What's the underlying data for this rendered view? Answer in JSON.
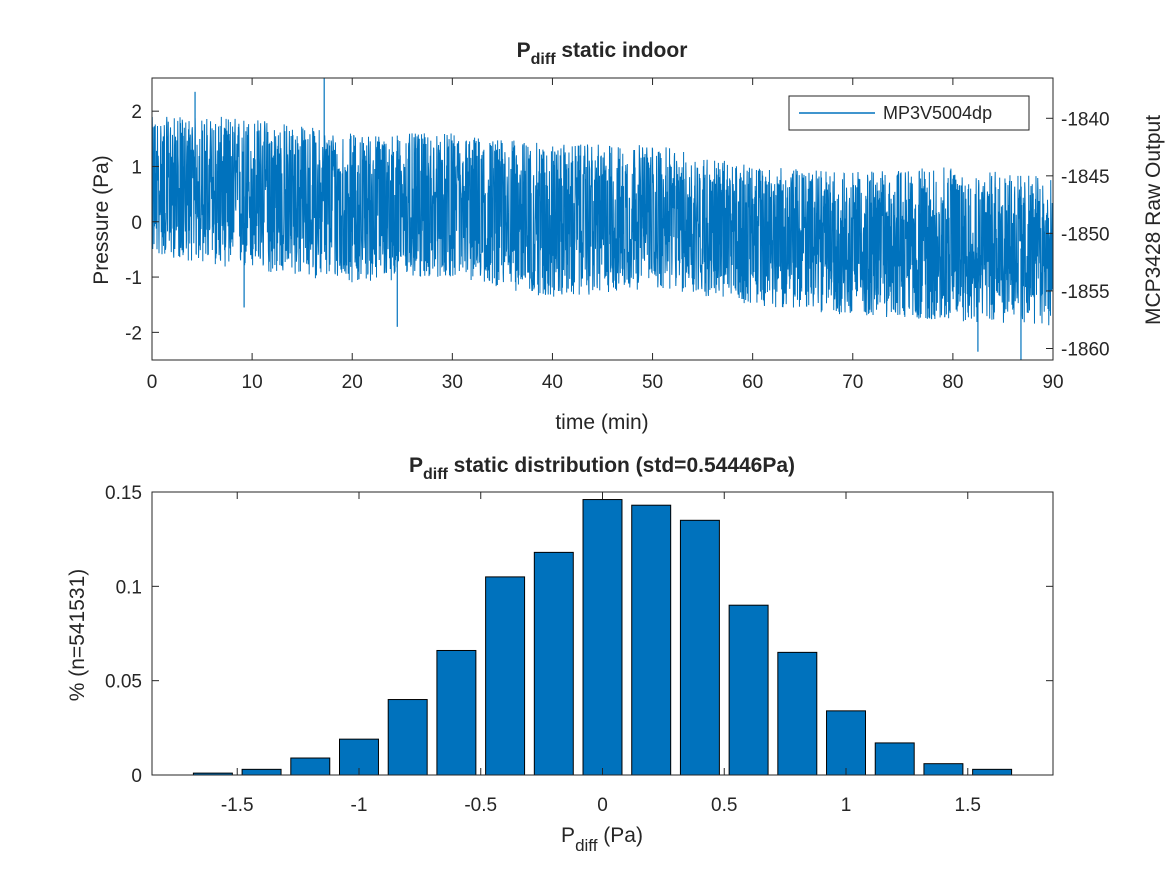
{
  "figure": {
    "background": "#ffffff",
    "accent_color": "#0072BD",
    "axis_color": "#262626"
  },
  "chart_data": [
    {
      "type": "line",
      "title_main": "P",
      "title_sub": "diff",
      "title_rest": " static indoor",
      "xlabel": "time (min)",
      "ylabel": "Pressure (Pa)",
      "y2label": "MCP3428 Raw Output",
      "xlim": [
        0,
        90
      ],
      "ylim": [
        -2.5,
        2.6
      ],
      "y2lim": [
        -1861,
        -1836.5
      ],
      "xticks": [
        0,
        10,
        20,
        30,
        40,
        50,
        60,
        70,
        80,
        90
      ],
      "yticks": [
        -2,
        -1,
        0,
        1,
        2
      ],
      "y2ticks": [
        -1860,
        -1855,
        -1850,
        -1845,
        -1840
      ],
      "legend": {
        "entries": [
          "MP3V5004dp"
        ],
        "location": "top-right"
      },
      "series": [
        {
          "name": "MP3V5004dp",
          "color": "#0072BD",
          "description_points": {
            "x": [
              0,
              10,
              20,
              30,
              40,
              50,
              60,
              70,
              80,
              90
            ],
            "mean": [
              0.55,
              0.45,
              0.35,
              0.2,
              0.1,
              0.0,
              -0.2,
              -0.35,
              -0.45,
              -0.5
            ],
            "upper": [
              1.9,
              1.9,
              1.6,
              1.6,
              1.4,
              1.4,
              1.0,
              0.9,
              1.0,
              0.8
            ],
            "lower": [
              -0.6,
              -0.9,
              -1.1,
              -1.0,
              -1.4,
              -1.2,
              -1.5,
              -1.7,
              -1.8,
              -1.9
            ]
          },
          "peaks": [
            {
              "x": 4.3,
              "y": 2.35
            },
            {
              "x": 17.2,
              "y": 2.6
            },
            {
              "x": 9.2,
              "y": -1.55
            },
            {
              "x": 24.5,
              "y": -1.9
            },
            {
              "x": 82.5,
              "y": -2.35
            },
            {
              "x": 86.8,
              "y": -2.5
            }
          ]
        }
      ],
      "grid": false
    },
    {
      "type": "bar",
      "title_main": "P",
      "title_sub": "diff",
      "title_rest": " static distribution (std=0.54446Pa)",
      "xlabel_main": "P",
      "xlabel_sub": "diff",
      "xlabel_rest": " (Pa)",
      "ylabel": "% (n=541531)",
      "xlim": [
        -1.85,
        1.85
      ],
      "ylim": [
        0,
        0.15
      ],
      "xticks": [
        -1.5,
        -1,
        -0.5,
        0,
        0.5,
        1,
        1.5
      ],
      "yticks": [
        0,
        0.05,
        0.1,
        0.15
      ],
      "bin_width": 0.2,
      "categories": [
        -1.6,
        -1.4,
        -1.2,
        -1.0,
        -0.8,
        -0.6,
        -0.4,
        -0.2,
        0.0,
        0.2,
        0.4,
        0.6,
        0.8,
        1.0,
        1.2,
        1.4,
        1.6
      ],
      "values": [
        0.001,
        0.003,
        0.009,
        0.019,
        0.04,
        0.066,
        0.105,
        0.118,
        0.146,
        0.143,
        0.135,
        0.09,
        0.065,
        0.034,
        0.017,
        0.006,
        0.003
      ],
      "bar_color": "#0072BD",
      "grid": false
    }
  ]
}
